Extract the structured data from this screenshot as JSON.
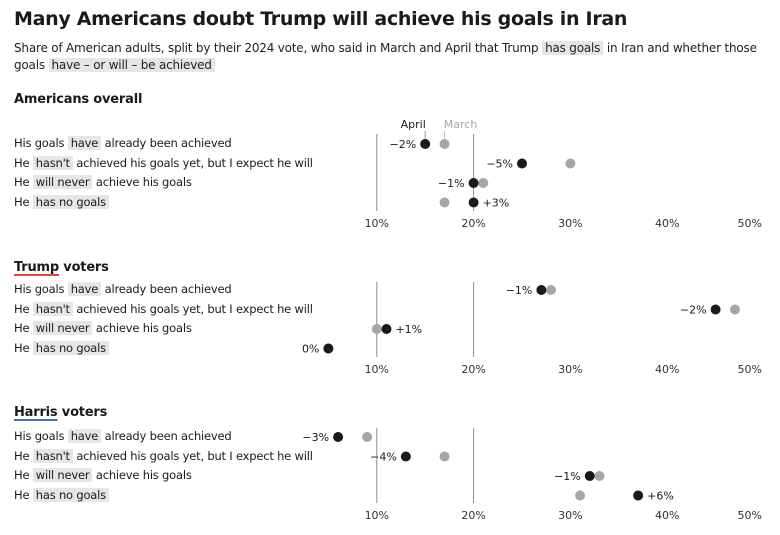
{
  "title": "Many Americans doubt Trump will achieve his goals in Iran",
  "subtitle": {
    "part1": "Share of American adults, split by their 2024 vote, who said in March and April that Trump",
    "hl1": "has goals",
    "part2": "in Iran and whether those goals",
    "hl2": "have – or will – be achieved"
  },
  "row_labels": [
    {
      "pre": "His goals",
      "hl": "have",
      "post": "already been achieved"
    },
    {
      "pre": "He",
      "hl": "hasn't",
      "post": "achieved his goals yet, but I expect he will"
    },
    {
      "pre": "He",
      "hl": "will never",
      "post": "achieve his goals"
    },
    {
      "pre": "He",
      "hl": "has no goals",
      "post": ""
    }
  ],
  "colors": {
    "april": "#1a1a1a",
    "march": "#a6a6a6",
    "trump_underline": "#e0463a",
    "harris_underline": "#3a6fb5"
  },
  "legend": {
    "april": "April",
    "march": "March"
  },
  "chart_data": {
    "type": "dot-plot",
    "title": "Many Americans doubt Trump will achieve his goals in Iran",
    "xlim": [
      0,
      50
    ],
    "ticks": [
      10,
      20,
      30,
      40,
      50
    ],
    "tick_labels": [
      "10%",
      "20%",
      "30%",
      "40%",
      "50%"
    ],
    "gridlines": [
      10,
      20
    ],
    "legend": [
      "April",
      "March"
    ],
    "legend_placement": "top, above first panel",
    "panels": [
      {
        "name": "Americans overall",
        "name_key": "",
        "name_rest": "Americans overall",
        "underline": "",
        "categories": [
          "have",
          "hasn't",
          "will never",
          "has no goals"
        ],
        "april": [
          15,
          25,
          20,
          20
        ],
        "march": [
          17,
          30,
          21,
          17
        ],
        "changes": [
          "−2%",
          "−5%",
          "−1%",
          "+3%"
        ],
        "change_side": [
          "left",
          "left",
          "left",
          "right"
        ]
      },
      {
        "name": "Trump voters",
        "name_key": "Trump",
        "name_rest": " voters",
        "underline": "trump_underline",
        "categories": [
          "have",
          "hasn't",
          "will never",
          "has no goals"
        ],
        "april": [
          27,
          45,
          11,
          5
        ],
        "march": [
          28,
          47,
          10,
          5
        ],
        "changes": [
          "−1%",
          "−2%",
          "+1%",
          "0%"
        ],
        "change_side": [
          "left",
          "left",
          "right",
          "left"
        ]
      },
      {
        "name": "Harris voters",
        "name_key": "Harris",
        "name_rest": " voters",
        "underline": "harris_underline",
        "categories": [
          "have",
          "hasn't",
          "will never",
          "has no goals"
        ],
        "april": [
          6,
          13,
          32,
          37
        ],
        "march": [
          9,
          17,
          33,
          31
        ],
        "changes": [
          "−3%",
          "−4%",
          "−1%",
          "+6%"
        ],
        "change_side": [
          "left",
          "left",
          "left",
          "right"
        ]
      }
    ]
  }
}
